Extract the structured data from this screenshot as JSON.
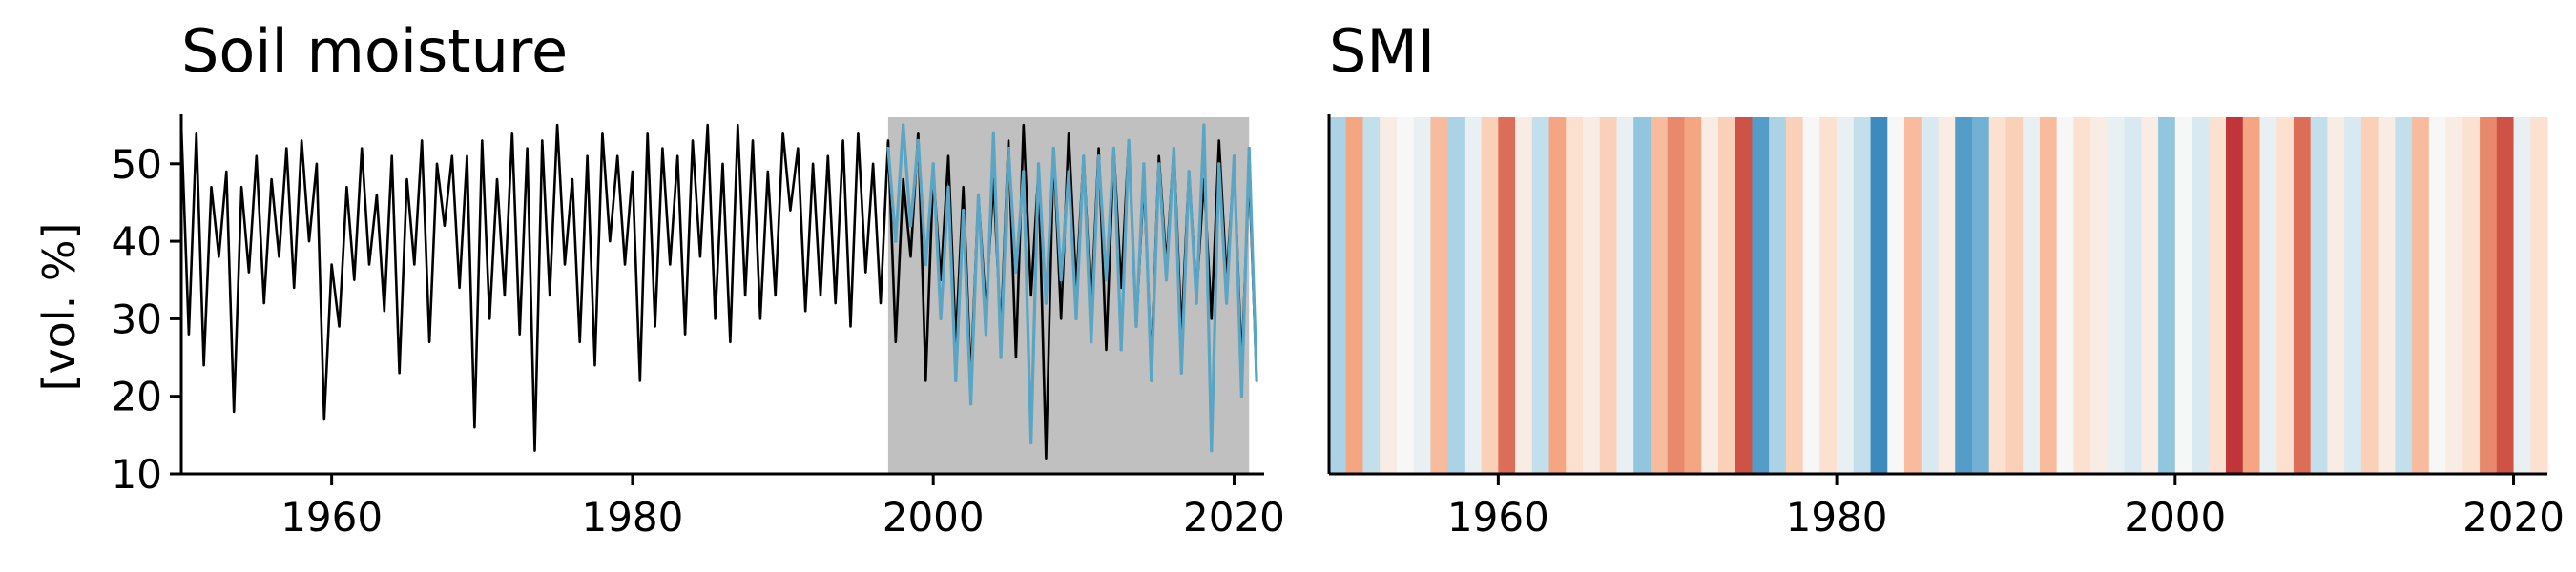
{
  "chart_data": [
    {
      "type": "line",
      "title": "Soil moisture",
      "xlabel": "",
      "ylabel": "[vol. %]",
      "xlim": [
        1950,
        2022
      ],
      "ylim": [
        10,
        56
      ],
      "xticks": [
        "1960",
        "1980",
        "2000",
        "2020"
      ],
      "yticks": [
        "10",
        "20",
        "30",
        "40",
        "50"
      ],
      "observation_period": [
        1997,
        2021
      ],
      "shading_color": "#c0c0c0",
      "series": [
        {
          "color": "#000000",
          "x": [
            1950.0,
            1950.5,
            1951.0,
            1951.5,
            1952.0,
            1952.5,
            1953.0,
            1953.5,
            1954.0,
            1954.5,
            1955.0,
            1955.5,
            1956.0,
            1956.5,
            1957.0,
            1957.5,
            1958.0,
            1958.5,
            1959.0,
            1959.5,
            1960.0,
            1960.5,
            1961.0,
            1961.5,
            1962.0,
            1962.5,
            1963.0,
            1963.5,
            1964.0,
            1964.5,
            1965.0,
            1965.5,
            1966.0,
            1966.5,
            1967.0,
            1967.5,
            1968.0,
            1968.5,
            1969.0,
            1969.5,
            1970.0,
            1970.5,
            1971.0,
            1971.5,
            1972.0,
            1972.5,
            1973.0,
            1973.5,
            1974.0,
            1974.5,
            1975.0,
            1975.5,
            1976.0,
            1976.5,
            1977.0,
            1977.5,
            1978.0,
            1978.5,
            1979.0,
            1979.5,
            1980.0,
            1980.5,
            1981.0,
            1981.5,
            1982.0,
            1982.5,
            1983.0,
            1983.5,
            1984.0,
            1984.5,
            1985.0,
            1985.5,
            1986.0,
            1986.5,
            1987.0,
            1987.5,
            1988.0,
            1988.5,
            1989.0,
            1989.5,
            1990.0,
            1990.5,
            1991.0,
            1991.5,
            1992.0,
            1992.5,
            1993.0,
            1993.5,
            1994.0,
            1994.5,
            1995.0,
            1995.5,
            1996.0,
            1996.5,
            1997.0,
            1997.5,
            1998.0,
            1998.5,
            1999.0,
            1999.5,
            2000.0,
            2000.5,
            2001.0,
            2001.5,
            2002.0,
            2002.5,
            2003.0,
            2003.5,
            2004.0,
            2004.5,
            2005.0,
            2005.5,
            2006.0,
            2006.5,
            2007.0,
            2007.5,
            2008.0,
            2008.5,
            2009.0,
            2009.5,
            2010.0,
            2010.5,
            2011.0,
            2011.5,
            2012.0,
            2012.5,
            2013.0,
            2013.5,
            2014.0,
            2014.5,
            2015.0,
            2015.5,
            2016.0,
            2016.5,
            2017.0,
            2017.5,
            2018.0,
            2018.5,
            2019.0,
            2019.5,
            2020.0,
            2020.5,
            2021.0,
            2021.5
          ],
          "y": [
            55,
            28,
            54,
            24,
            47,
            38,
            49,
            18,
            47,
            36,
            51,
            32,
            48,
            38,
            52,
            34,
            53,
            40,
            50,
            17,
            37,
            29,
            47,
            35,
            52,
            37,
            46,
            31,
            51,
            23,
            48,
            37,
            53,
            27,
            50,
            42,
            51,
            34,
            51,
            16,
            53,
            30,
            48,
            33,
            54,
            28,
            52,
            13,
            53,
            33,
            55,
            37,
            48,
            27,
            51,
            24,
            54,
            40,
            51,
            37,
            49,
            22,
            54,
            29,
            52,
            37,
            51,
            28,
            53,
            38,
            55,
            30,
            50,
            27,
            55,
            33,
            53,
            30,
            49,
            33,
            54,
            44,
            52,
            31,
            50,
            33,
            51,
            32,
            53,
            29,
            54,
            36,
            50,
            32,
            53,
            27,
            48,
            38,
            54,
            22,
            49,
            35,
            51,
            27,
            47,
            22,
            46,
            31,
            48,
            28,
            53,
            25,
            55,
            33,
            49,
            12,
            52,
            30,
            54,
            34,
            51,
            31,
            52,
            26,
            52,
            34,
            53,
            29,
            48,
            24,
            51,
            37,
            52,
            28,
            49,
            33,
            48,
            30,
            53,
            35,
            50,
            24,
            49,
            22
          ]
        },
        {
          "color": "#5aa4c4",
          "x": [
            1997.0,
            1997.5,
            1998.0,
            1998.5,
            1999.0,
            1999.5,
            2000.0,
            2000.5,
            2001.0,
            2001.5,
            2002.0,
            2002.5,
            2003.0,
            2003.5,
            2004.0,
            2004.5,
            2005.0,
            2005.5,
            2006.0,
            2006.5,
            2007.0,
            2007.5,
            2008.0,
            2008.5,
            2009.0,
            2009.5,
            2010.0,
            2010.5,
            2011.0,
            2011.5,
            2012.0,
            2012.5,
            2013.0,
            2013.5,
            2014.0,
            2014.5,
            2015.0,
            2015.5,
            2016.0,
            2016.5,
            2017.0,
            2017.5,
            2018.0,
            2018.5,
            2019.0,
            2019.5,
            2020.0,
            2020.5,
            2021.0,
            2021.5
          ],
          "y": [
            52,
            40,
            55,
            42,
            53,
            37,
            50,
            30,
            47,
            22,
            44,
            19,
            46,
            28,
            54,
            25,
            52,
            36,
            49,
            14,
            50,
            32,
            52,
            35,
            49,
            30,
            51,
            27,
            51,
            35,
            52,
            26,
            53,
            29,
            50,
            22,
            50,
            35,
            52,
            23,
            49,
            32,
            55,
            13,
            50,
            32,
            51,
            20,
            52,
            22
          ]
        }
      ]
    },
    {
      "type": "heatmap",
      "title": "SMI",
      "xlim": [
        1950,
        2022
      ],
      "xticks": [
        "1960",
        "1980",
        "2000",
        "2020"
      ],
      "colormap": [
        "#b2182b",
        "#d6604d",
        "#f4a582",
        "#fddbc7",
        "#f7f7f7",
        "#d1e5f0",
        "#92c5de",
        "#4393c3",
        "#2166ac"
      ],
      "years": [
        1950,
        1951,
        1952,
        1953,
        1954,
        1955,
        1956,
        1957,
        1958,
        1959,
        1960,
        1961,
        1962,
        1963,
        1964,
        1965,
        1966,
        1967,
        1968,
        1969,
        1970,
        1971,
        1972,
        1973,
        1974,
        1975,
        1976,
        1977,
        1978,
        1979,
        1980,
        1981,
        1982,
        1983,
        1984,
        1985,
        1986,
        1987,
        1988,
        1989,
        1990,
        1991,
        1992,
        1993,
        1994,
        1995,
        1996,
        1997,
        1998,
        1999,
        2000,
        2001,
        2002,
        2003,
        2004,
        2005,
        2006,
        2007,
        2008,
        2009,
        2010,
        2011,
        2012,
        2013,
        2014,
        2015,
        2016,
        2017,
        2018,
        2019,
        2020,
        2021
      ],
      "values": [
        0.7,
        0.25,
        0.65,
        0.45,
        0.5,
        0.55,
        0.3,
        0.7,
        0.55,
        0.35,
        0.15,
        0.45,
        0.65,
        0.25,
        0.4,
        0.45,
        0.35,
        0.55,
        0.75,
        0.3,
        0.2,
        0.25,
        0.45,
        0.35,
        0.1,
        0.85,
        0.7,
        0.35,
        0.5,
        0.4,
        0.55,
        0.65,
        0.9,
        0.5,
        0.3,
        0.6,
        0.45,
        0.85,
        0.8,
        0.4,
        0.35,
        0.55,
        0.3,
        0.5,
        0.4,
        0.45,
        0.55,
        0.6,
        0.45,
        0.75,
        0.5,
        0.6,
        0.4,
        0.05,
        0.25,
        0.55,
        0.4,
        0.15,
        0.65,
        0.45,
        0.6,
        0.35,
        0.45,
        0.65,
        0.3,
        0.5,
        0.45,
        0.4,
        0.2,
        0.1,
        0.55,
        0.4
      ]
    }
  ]
}
